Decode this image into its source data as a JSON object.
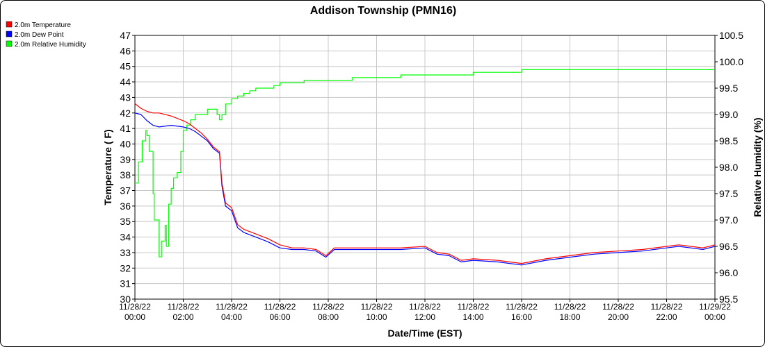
{
  "chart_data": {
    "type": "line",
    "title": "Addison Township (PMN16)",
    "xlabel": "Date/Time (EST)",
    "ylabel_left": "Temperature ( F)",
    "ylabel_right": "Relative Humidity (%)",
    "ylim_left": [
      30,
      47
    ],
    "ylim_right": [
      95.5,
      100.5
    ],
    "xlim": [
      "11/28/22 00:00",
      "11/29/22 00:00"
    ],
    "legend_position": "top-left",
    "grid": true,
    "left_ticks": [
      "30",
      "31",
      "32",
      "33",
      "34",
      "35",
      "36",
      "37",
      "38",
      "39",
      "40",
      "41",
      "42",
      "43",
      "44",
      "45",
      "46",
      "47"
    ],
    "right_ticks": [
      "95.5",
      "96.0",
      "96.5",
      "97.0",
      "97.5",
      "98.0",
      "98.5",
      "99.0",
      "99.5",
      "100.0",
      "100.5"
    ],
    "x_ticks": [
      {
        "date": "11/28/22",
        "time": "00:00"
      },
      {
        "date": "11/28/22",
        "time": "02:00"
      },
      {
        "date": "11/28/22",
        "time": "04:00"
      },
      {
        "date": "11/28/22",
        "time": "06:00"
      },
      {
        "date": "11/28/22",
        "time": "08:00"
      },
      {
        "date": "11/28/22",
        "time": "10:00"
      },
      {
        "date": "11/28/22",
        "time": "12:00"
      },
      {
        "date": "11/28/22",
        "time": "14:00"
      },
      {
        "date": "11/28/22",
        "time": "16:00"
      },
      {
        "date": "11/28/22",
        "time": "18:00"
      },
      {
        "date": "11/28/22",
        "time": "20:00"
      },
      {
        "date": "11/28/22",
        "time": "22:00"
      },
      {
        "date": "11/29/22",
        "time": "00:00"
      }
    ],
    "series": [
      {
        "name": "2.0m Temperature",
        "color": "#ff0000",
        "axis": "left",
        "x_hours": [
          0,
          0.25,
          0.5,
          0.75,
          1,
          1.5,
          2,
          2.25,
          2.5,
          2.75,
          3,
          3.25,
          3.5,
          3.6,
          3.75,
          4,
          4.25,
          4.5,
          5,
          5.5,
          6,
          6.5,
          7,
          7.5,
          7.9,
          8.25,
          8.5,
          9,
          10,
          11,
          12,
          12.5,
          13,
          13.5,
          14,
          15,
          16,
          17,
          18,
          19,
          20,
          21,
          22,
          22.5,
          23,
          23.5,
          24
        ],
        "values": [
          42.6,
          42.3,
          42.1,
          42.0,
          42.0,
          41.8,
          41.5,
          41.3,
          41.0,
          40.7,
          40.3,
          39.8,
          39.5,
          37.5,
          36.2,
          35.9,
          34.8,
          34.5,
          34.2,
          33.9,
          33.5,
          33.3,
          33.3,
          33.2,
          32.8,
          33.3,
          33.3,
          33.3,
          33.3,
          33.3,
          33.4,
          33.0,
          32.9,
          32.5,
          32.6,
          32.5,
          32.3,
          32.6,
          32.8,
          33.0,
          33.1,
          33.2,
          33.4,
          33.5,
          33.4,
          33.3,
          33.5
        ]
      },
      {
        "name": "2.0m Dew Point",
        "color": "#0000ff",
        "axis": "left",
        "x_hours": [
          0,
          0.25,
          0.5,
          0.75,
          1,
          1.5,
          2,
          2.25,
          2.5,
          2.75,
          3,
          3.25,
          3.5,
          3.6,
          3.75,
          4,
          4.25,
          4.5,
          5,
          5.5,
          6,
          6.5,
          7,
          7.5,
          7.9,
          8.25,
          8.5,
          9,
          10,
          11,
          12,
          12.5,
          13,
          13.5,
          14,
          15,
          16,
          17,
          18,
          19,
          20,
          21,
          22,
          22.5,
          23,
          23.5,
          24
        ],
        "values": [
          42.0,
          41.9,
          41.5,
          41.2,
          41.1,
          41.2,
          41.1,
          41.0,
          40.8,
          40.5,
          40.2,
          39.7,
          39.4,
          37.3,
          36.0,
          35.7,
          34.6,
          34.3,
          34.0,
          33.7,
          33.3,
          33.2,
          33.2,
          33.1,
          32.7,
          33.2,
          33.2,
          33.2,
          33.2,
          33.2,
          33.3,
          32.9,
          32.8,
          32.4,
          32.5,
          32.4,
          32.2,
          32.5,
          32.7,
          32.9,
          33.0,
          33.1,
          33.3,
          33.4,
          33.3,
          33.2,
          33.4
        ]
      },
      {
        "name": "2.0m Relative Humidity",
        "color": "#00ff00",
        "axis": "right",
        "x_hours": [
          0,
          0.15,
          0.3,
          0.45,
          0.5,
          0.6,
          0.75,
          0.8,
          1.0,
          1.1,
          1.25,
          1.3,
          1.4,
          1.5,
          1.6,
          1.75,
          1.9,
          2.0,
          2.15,
          2.3,
          2.5,
          2.75,
          3.0,
          3.2,
          3.4,
          3.5,
          3.6,
          3.75,
          4.0,
          4.25,
          4.5,
          4.75,
          5.0,
          5.5,
          5.75,
          6.0,
          6.5,
          7.0,
          8.0,
          9.0,
          10.0,
          11.0,
          12.0,
          13.0,
          14.0,
          15.0,
          16.0,
          17.0,
          18.0,
          20.0,
          22.0,
          24.0
        ],
        "values": [
          97.7,
          98.1,
          98.5,
          98.7,
          98.6,
          98.3,
          97.5,
          97.0,
          96.3,
          96.6,
          96.9,
          96.5,
          97.3,
          97.6,
          97.8,
          97.9,
          98.3,
          98.7,
          98.8,
          98.9,
          99.0,
          99.0,
          99.1,
          99.1,
          99.0,
          98.9,
          99.0,
          99.2,
          99.3,
          99.35,
          99.4,
          99.45,
          99.5,
          99.5,
          99.55,
          99.6,
          99.6,
          99.65,
          99.65,
          99.7,
          99.7,
          99.75,
          99.75,
          99.75,
          99.8,
          99.8,
          99.85,
          99.85,
          99.85,
          99.85,
          99.85,
          99.85
        ]
      }
    ]
  }
}
